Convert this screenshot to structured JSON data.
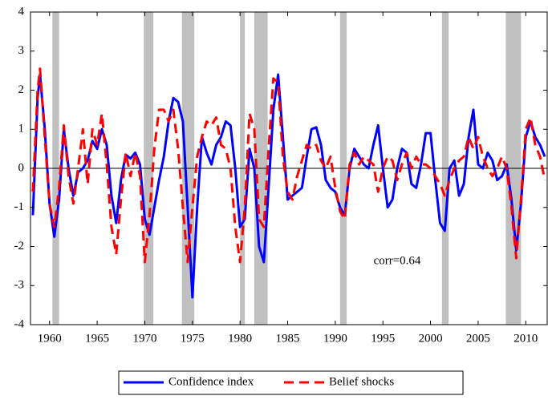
{
  "chart_data": {
    "type": "line",
    "x": [
      1958.25,
      1958.75,
      1959.0,
      1959.5,
      1960.0,
      1960.5,
      1961.0,
      1961.5,
      1962.0,
      1962.5,
      1963.0,
      1963.5,
      1964.0,
      1964.5,
      1965.0,
      1965.5,
      1966.0,
      1966.5,
      1967.0,
      1967.5,
      1968.0,
      1968.5,
      1969.0,
      1969.5,
      1970.0,
      1970.5,
      1971.0,
      1971.5,
      1972.0,
      1972.5,
      1973.0,
      1973.5,
      1974.0,
      1974.5,
      1975.0,
      1975.5,
      1976.0,
      1976.5,
      1977.0,
      1977.5,
      1978.0,
      1978.5,
      1979.0,
      1979.5,
      1980.0,
      1980.5,
      1981.0,
      1981.5,
      1982.0,
      1982.5,
      1983.0,
      1983.5,
      1984.0,
      1984.5,
      1985.0,
      1985.5,
      1986.0,
      1986.5,
      1987.0,
      1987.5,
      1988.0,
      1988.5,
      1989.0,
      1989.5,
      1990.0,
      1990.5,
      1991.0,
      1991.5,
      1992.0,
      1992.5,
      1993.0,
      1993.5,
      1994.0,
      1994.5,
      1995.0,
      1995.5,
      1996.0,
      1996.5,
      1997.0,
      1997.5,
      1998.0,
      1998.5,
      1999.0,
      1999.5,
      2000.0,
      2000.5,
      2001.0,
      2001.5,
      2002.0,
      2002.5,
      2003.0,
      2003.5,
      2004.0,
      2004.5,
      2005.0,
      2005.5,
      2006.0,
      2006.5,
      2007.0,
      2007.5,
      2008.0,
      2008.5,
      2009.0,
      2009.5,
      2010.0,
      2010.5,
      2011.0,
      2011.5,
      2012.0
    ],
    "series": [
      {
        "name": "Confidence index",
        "color": "#0000ff",
        "dash": false,
        "values": [
          -1.2,
          1.8,
          2.4,
          1.0,
          -0.9,
          -1.75,
          -0.8,
          1.0,
          0.0,
          -0.7,
          -0.1,
          0.0,
          0.2,
          0.7,
          0.5,
          1.0,
          0.6,
          -0.7,
          -1.4,
          -0.3,
          0.35,
          0.25,
          0.4,
          0.1,
          -1.3,
          -1.7,
          -1.0,
          -0.3,
          0.3,
          1.2,
          1.8,
          1.7,
          1.2,
          -1.0,
          -3.3,
          -1.0,
          0.8,
          0.4,
          0.1,
          0.6,
          0.8,
          1.2,
          1.1,
          0.0,
          -1.5,
          -1.3,
          0.5,
          0.0,
          -2.0,
          -2.4,
          -0.5,
          1.5,
          2.4,
          0.8,
          -0.8,
          -0.7,
          -0.6,
          -0.5,
          0.3,
          1.0,
          1.05,
          0.6,
          -0.3,
          -0.5,
          -0.6,
          -1.0,
          -1.2,
          0.0,
          0.5,
          0.3,
          0.1,
          0.0,
          0.6,
          1.1,
          0.0,
          -1.0,
          -0.8,
          0.0,
          0.5,
          0.4,
          -0.4,
          -0.5,
          0.1,
          0.9,
          0.9,
          -0.3,
          -1.4,
          -1.6,
          0.0,
          0.2,
          -0.7,
          -0.4,
          0.8,
          1.5,
          0.1,
          0.0,
          0.4,
          0.2,
          -0.3,
          -0.2,
          0.1,
          -0.8,
          -2.1,
          -0.9,
          0.8,
          1.2,
          0.8,
          0.6,
          0.3
        ]
      },
      {
        "name": "Belief shocks",
        "color": "#ff0000",
        "dash": true,
        "values": [
          -0.6,
          2.0,
          2.55,
          0.8,
          -0.9,
          -1.5,
          -0.5,
          1.1,
          -0.2,
          -0.9,
          0.0,
          1.0,
          -0.4,
          1.0,
          0.6,
          1.4,
          0.1,
          -1.5,
          -2.2,
          -0.8,
          0.4,
          -0.2,
          0.4,
          -0.2,
          -2.4,
          -1.2,
          0.5,
          1.5,
          1.5,
          1.2,
          1.5,
          0.5,
          -1.0,
          -2.4,
          -1.0,
          0.3,
          0.8,
          1.2,
          1.1,
          1.3,
          0.6,
          0.5,
          0.0,
          -1.5,
          -2.4,
          -1.0,
          1.4,
          1.0,
          -1.3,
          -1.5,
          0.5,
          2.3,
          2.2,
          0.3,
          -0.6,
          -0.8,
          -0.2,
          0.2,
          0.6,
          0.5,
          0.6,
          0.2,
          0.0,
          0.3,
          -0.5,
          -1.1,
          -1.3,
          0.1,
          0.4,
          0.1,
          0.3,
          0.2,
          0.1,
          -0.6,
          0.0,
          0.3,
          0.2,
          -0.3,
          0.1,
          0.4,
          0.0,
          0.3,
          0.1,
          0.1,
          0.0,
          -0.2,
          -0.4,
          -0.7,
          -0.3,
          0.0,
          0.2,
          0.3,
          0.8,
          0.5,
          0.8,
          0.3,
          0.0,
          -0.2,
          0.0,
          0.3,
          0.0,
          -1.0,
          -2.3,
          -0.8,
          1.0,
          1.3,
          0.6,
          0.3,
          -0.3
        ]
      }
    ],
    "shaded_periods": [
      [
        1960.3,
        1961.0
      ],
      [
        1969.9,
        1970.9
      ],
      [
        1973.9,
        1975.2
      ],
      [
        1980.0,
        1980.5
      ],
      [
        1981.5,
        1982.9
      ],
      [
        1990.5,
        1991.2
      ],
      [
        2001.2,
        2001.9
      ],
      [
        2007.9,
        2009.5
      ]
    ],
    "shade_color": "#c0c0c0",
    "reference_line": 0,
    "annotation": "corr=0.64",
    "xlim": [
      1958,
      2012.25
    ],
    "xticks": [
      1960,
      1965,
      1970,
      1975,
      1980,
      1985,
      1990,
      1995,
      2000,
      2005,
      2010
    ],
    "ylim": [
      -4,
      4
    ],
    "yticks": [
      -4,
      -3,
      -2,
      -1,
      0,
      1,
      2,
      3,
      4
    ],
    "legend": "bottom"
  }
}
